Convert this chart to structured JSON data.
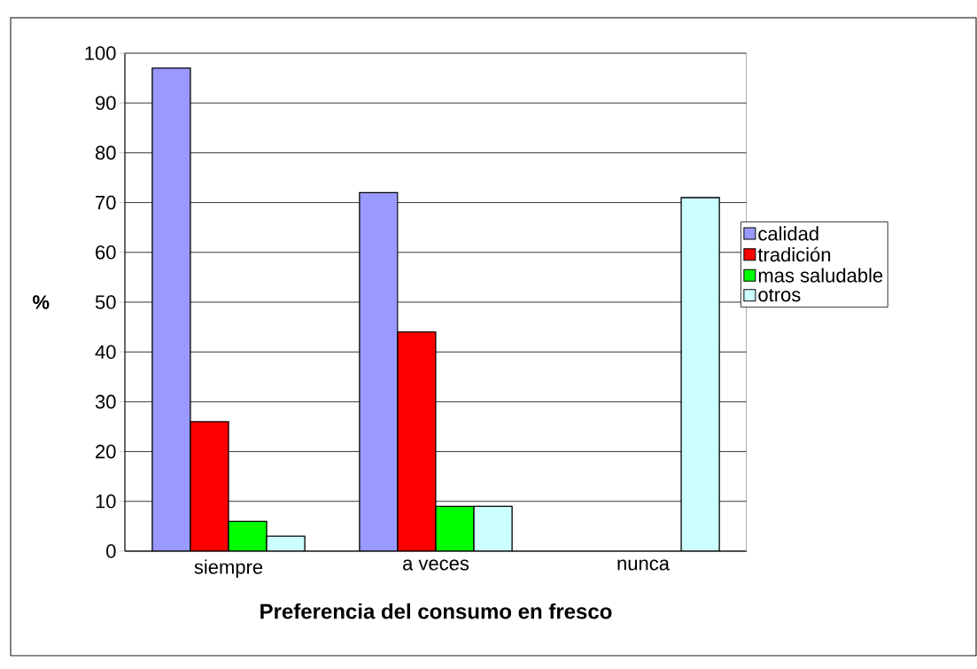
{
  "chart_data": {
    "type": "bar",
    "xlabel": "Preferencia del consumo en fresco",
    "ylabel": "%",
    "categories": [
      "siempre",
      "a veces",
      "nunca"
    ],
    "series": [
      {
        "name": "calidad",
        "color": "#9999ff",
        "values": [
          97,
          72,
          null
        ]
      },
      {
        "name": "tradición",
        "color": "#ff0000",
        "values": [
          26,
          44,
          null
        ]
      },
      {
        "name": "mas saludable",
        "color": "#00ff00",
        "values": [
          6,
          9,
          null
        ]
      },
      {
        "name": "otros",
        "color": "#ccffff",
        "values": [
          3,
          9,
          71
        ]
      }
    ],
    "ylim": [
      0,
      100
    ],
    "yticks": [
      0,
      10,
      20,
      30,
      40,
      50,
      60,
      70,
      80,
      90,
      100
    ],
    "grid": "y",
    "legend": "right"
  }
}
